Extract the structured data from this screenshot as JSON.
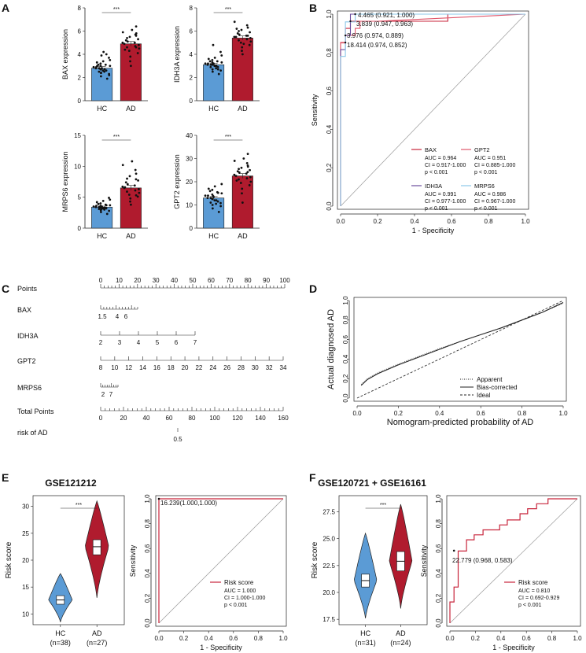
{
  "panels": {
    "A": "A",
    "B": "B",
    "C": "C",
    "D": "D",
    "E": "E",
    "F": "F"
  },
  "colors": {
    "hc": "#5B9BD5",
    "ad": "#B01B2E",
    "bax": "#C8243B",
    "idh3a": "#6A4C9C",
    "gpt2": "#E0566B",
    "mrps6": "#8BC7E8"
  },
  "chart_data": [
    {
      "type": "bar",
      "id": "A1",
      "categories": [
        "HC",
        "AD"
      ],
      "values": [
        2.8,
        4.9
      ],
      "errors": [
        0.15,
        0.2
      ],
      "ylabel": "BAX expression",
      "ylim": [
        0,
        8
      ],
      "yticks": [
        0,
        2,
        4,
        6,
        8
      ],
      "significance": "***",
      "points": [
        [
          1.9,
          2.1,
          2.3,
          2.4,
          2.5,
          2.5,
          2.6,
          2.6,
          2.7,
          2.7,
          2.8,
          2.8,
          2.8,
          2.9,
          2.9,
          3.0,
          3.0,
          3.1,
          3.1,
          3.2,
          3.3,
          3.4,
          3.5,
          3.7,
          3.9,
          4.0,
          4.2,
          2.2,
          2.4,
          3.0
        ],
        [
          3.0,
          3.4,
          3.8,
          4.1,
          4.3,
          4.5,
          4.6,
          4.7,
          4.8,
          4.9,
          5.0,
          5.0,
          5.1,
          5.2,
          5.3,
          5.4,
          5.5,
          5.6,
          5.7,
          5.9,
          6.1,
          6.4,
          4.4,
          4.6,
          5.8
        ]
      ]
    },
    {
      "type": "bar",
      "id": "A2",
      "categories": [
        "HC",
        "AD"
      ],
      "values": [
        3.1,
        5.4
      ],
      "errors": [
        0.12,
        0.18
      ],
      "ylabel": "IDH3A expression",
      "ylim": [
        0,
        8
      ],
      "yticks": [
        0,
        2,
        4,
        6,
        8
      ],
      "significance": "***",
      "points": [
        [
          2.3,
          2.5,
          2.6,
          2.7,
          2.8,
          2.9,
          2.9,
          3.0,
          3.0,
          3.1,
          3.1,
          3.1,
          3.2,
          3.2,
          3.2,
          3.3,
          3.3,
          3.4,
          3.4,
          3.5,
          3.6,
          3.7,
          3.9,
          4.2,
          4.8,
          2.7,
          3.0
        ],
        [
          4.0,
          4.3,
          4.6,
          4.8,
          5.0,
          5.1,
          5.2,
          5.3,
          5.4,
          5.5,
          5.5,
          5.6,
          5.7,
          5.8,
          5.9,
          6.0,
          6.1,
          6.3,
          6.5,
          6.8,
          4.9,
          5.6,
          6.2
        ]
      ]
    },
    {
      "type": "bar",
      "id": "A3",
      "categories": [
        "HC",
        "AD"
      ],
      "values": [
        3.4,
        6.5
      ],
      "errors": [
        0.15,
        0.4
      ],
      "ylabel": "MRPS6 expression",
      "ylim": [
        0,
        15
      ],
      "yticks": [
        0,
        5,
        10,
        15
      ],
      "significance": "***",
      "points": [
        [
          2.3,
          2.6,
          2.8,
          2.9,
          3.0,
          3.1,
          3.2,
          3.2,
          3.3,
          3.3,
          3.4,
          3.4,
          3.5,
          3.5,
          3.6,
          3.6,
          3.7,
          3.8,
          3.9,
          4.0,
          4.2,
          4.4,
          4.6,
          4.9,
          3.1,
          3.7
        ],
        [
          3.8,
          4.3,
          4.8,
          5.1,
          5.4,
          5.7,
          5.9,
          6.1,
          6.3,
          6.5,
          6.7,
          6.9,
          7.1,
          7.4,
          7.7,
          8.0,
          8.4,
          8.8,
          9.4,
          10.2,
          10.8,
          5.3,
          6.6,
          7.9
        ]
      ]
    },
    {
      "type": "bar",
      "id": "A4",
      "categories": [
        "HC",
        "AD"
      ],
      "values": [
        13,
        22.5
      ],
      "errors": [
        0.6,
        1.0
      ],
      "ylabel": "GPT2 expression",
      "ylim": [
        0,
        40
      ],
      "yticks": [
        0,
        10,
        20,
        30,
        40
      ],
      "significance": "***",
      "points": [
        [
          7,
          8.5,
          9.5,
          10,
          10.5,
          11,
          11.5,
          12,
          12,
          12.5,
          13,
          13,
          13.5,
          14,
          14,
          14.5,
          15,
          15.5,
          16,
          16.5,
          17,
          18,
          19,
          10.8,
          13.8,
          15.2
        ],
        [
          11,
          15,
          17,
          18.5,
          19.5,
          20,
          21,
          21.5,
          22,
          22.5,
          23,
          23.5,
          24,
          24.5,
          25,
          25.5,
          26,
          27,
          28,
          29,
          30,
          32,
          20.5,
          24.2,
          26.5
        ]
      ]
    },
    {
      "type": "line",
      "id": "B",
      "xlabel": "1 - Specificity",
      "ylabel": "Sensitivity",
      "xlim": [
        0,
        1
      ],
      "ylim": [
        0,
        1
      ],
      "ticks": [
        "0.0",
        "0.2",
        "0.4",
        "0.6",
        "0.8",
        "1.0"
      ],
      "annotations": [
        "4.465 (0.921, 1.000)",
        "3.839 (0.947, 0.963)",
        "3.976 (0.974, 0.889)",
        "18.414 (0.974, 0.852)"
      ],
      "series": [
        {
          "name": "BAX",
          "auc": "AUC = 0.964",
          "ci": "CI = 0.917-1.000",
          "p": "p < 0.001",
          "x": [
            0,
            0,
            0.026,
            0.026,
            0.053,
            0.053,
            0.079,
            0.079,
            0.58,
            0.58,
            0.9,
            1.0
          ],
          "y": [
            0,
            0.852,
            0.852,
            0.926,
            0.926,
            0.963,
            0.963,
            0.963,
            0.963,
            1.0,
            1.0,
            1.0
          ]
        },
        {
          "name": "GPT2",
          "auc": "AUC = 0.951",
          "ci": "CI = 0.885-1.000",
          "p": "p < 0.001",
          "x": [
            0,
            0,
            0.026,
            0.026,
            0.079,
            0.079,
            0.105,
            0.105,
            0.2,
            1.0
          ],
          "y": [
            0,
            0.85,
            0.85,
            0.89,
            0.89,
            0.926,
            0.926,
            0.963,
            0.963,
            1.0
          ]
        },
        {
          "name": "IDH3A",
          "auc": "AUC = 0.991",
          "ci": "CI = 0.977-1.000",
          "p": "p < 0.001",
          "x": [
            0,
            0,
            0.026,
            0.026,
            0.053,
            0.053,
            1.0
          ],
          "y": [
            0,
            0.815,
            0.815,
            0.889,
            0.889,
            1.0,
            1.0
          ]
        },
        {
          "name": "MRPS6",
          "auc": "AUC = 0.986",
          "ci": "CI = 0.967-1.000",
          "p": "p < 0.001",
          "x": [
            0,
            0,
            0.026,
            0.026,
            0.079,
            0.079,
            1.0
          ],
          "y": [
            0,
            0.78,
            0.78,
            0.96,
            0.96,
            1.0,
            1.0
          ]
        }
      ]
    },
    {
      "type": "table",
      "id": "C",
      "rows": [
        {
          "label": "Points",
          "ticks": [
            "0",
            "10",
            "20",
            "30",
            "40",
            "50",
            "60",
            "70",
            "80",
            "90",
            "100"
          ]
        },
        {
          "label": "BAX",
          "ticks": [
            "1.5",
            "4",
            "6"
          ]
        },
        {
          "label": "IDH3A",
          "ticks": [
            "2",
            "3",
            "4",
            "5",
            "6",
            "7"
          ]
        },
        {
          "label": "GPT2",
          "ticks": [
            "8",
            "10",
            "12",
            "14",
            "16",
            "18",
            "20",
            "22",
            "24",
            "26",
            "28",
            "30",
            "32",
            "34"
          ]
        },
        {
          "label": "MRPS6",
          "ticks": [
            "2",
            "7"
          ]
        },
        {
          "label": "Total Points",
          "ticks": [
            "0",
            "20",
            "40",
            "60",
            "80",
            "100",
            "120",
            "140",
            "160"
          ]
        },
        {
          "label": "risk of AD",
          "ticks": [
            "0.5"
          ]
        }
      ]
    },
    {
      "type": "line",
      "id": "D",
      "xlabel": "Nomogram-predicted probability of AD",
      "ylabel": "Actual diagnosed AD",
      "xlim": [
        0,
        1
      ],
      "ylim": [
        0,
        1
      ],
      "ticks": [
        "0.0",
        "0.2",
        "0.4",
        "0.6",
        "0.8",
        "1.0"
      ],
      "legend": [
        "Apparent",
        "Bias-corrected",
        "Ideal"
      ],
      "series": [
        {
          "name": "Apparent",
          "x": [
            0.02,
            0.05,
            0.1,
            0.2,
            0.3,
            0.4,
            0.5,
            0.6,
            0.7,
            0.8,
            0.9,
            1.0
          ],
          "y": [
            0.14,
            0.2,
            0.26,
            0.35,
            0.43,
            0.51,
            0.58,
            0.65,
            0.72,
            0.8,
            0.88,
            0.97
          ]
        },
        {
          "name": "Bias-corrected",
          "x": [
            0.02,
            0.05,
            0.1,
            0.2,
            0.3,
            0.4,
            0.5,
            0.6,
            0.7,
            0.8,
            0.9,
            1.0
          ],
          "y": [
            0.13,
            0.19,
            0.25,
            0.34,
            0.42,
            0.5,
            0.58,
            0.65,
            0.72,
            0.8,
            0.88,
            0.98
          ]
        },
        {
          "name": "Ideal",
          "x": [
            0,
            1
          ],
          "y": [
            0,
            1
          ]
        }
      ]
    },
    {
      "type": "violin",
      "id": "E1",
      "title": "GSE121212",
      "ylabel": "Risk score",
      "categories": [
        "HC\n(n=38)",
        "AD\n(n=27)"
      ],
      "cat_names": [
        "HC",
        "AD"
      ],
      "counts": [
        "(n=38)",
        "(n=27)"
      ],
      "ylim": [
        8,
        32
      ],
      "yticks": [
        10,
        15,
        20,
        25,
        30
      ],
      "significance": "***",
      "stats": [
        {
          "min": 8.5,
          "q1": 11.8,
          "median": 12.6,
          "q3": 13.4,
          "max": 17.5
        },
        {
          "min": 13,
          "q1": 21,
          "median": 22.5,
          "q3": 23.8,
          "max": 31
        }
      ]
    },
    {
      "type": "line",
      "id": "E2",
      "xlabel": "1 - Specificity",
      "ylabel": "Sensitivity",
      "xlim": [
        0,
        1
      ],
      "ylim": [
        0,
        1
      ],
      "ticks": [
        "0.0",
        "0.2",
        "0.4",
        "0.6",
        "0.8",
        "1.0"
      ],
      "annotation": "16.239(1.000,1.000)",
      "series": [
        {
          "name": "Risk score",
          "auc": "AUC = 1.000",
          "ci": "CI = 1.000-1.000",
          "p": "p < 0.001",
          "x": [
            0,
            0,
            1
          ],
          "y": [
            0,
            1,
            1
          ]
        }
      ]
    },
    {
      "type": "violin",
      "id": "F1",
      "title": "GSE120721 + GSE16161",
      "ylabel": "Risk score",
      "categories": [
        "HC\n(n=31)",
        "AD\n(n=24)"
      ],
      "cat_names": [
        "HC",
        "AD"
      ],
      "counts": [
        "(n=31)",
        "(n=24)"
      ],
      "ylim": [
        17,
        29
      ],
      "yticks": [
        17.5,
        20.0,
        22.5,
        25.0,
        27.5
      ],
      "yticklabels": [
        "17.5",
        "20.0",
        "22.5",
        "25.0",
        "27.5"
      ],
      "significance": "***",
      "stats": [
        {
          "min": 17.6,
          "q1": 20.5,
          "median": 21.1,
          "q3": 21.7,
          "max": 25.5
        },
        {
          "min": 18.5,
          "q1": 22.0,
          "median": 22.9,
          "q3": 23.8,
          "max": 28.2
        }
      ]
    },
    {
      "type": "line",
      "id": "F2",
      "xlabel": "1 - Specificity",
      "ylabel": "Sensitivity",
      "xlim": [
        0,
        1
      ],
      "ylim": [
        0,
        1
      ],
      "ticks": [
        "0.0",
        "0.2",
        "0.4",
        "0.6",
        "0.8",
        "1.0"
      ],
      "annotation": "22.779 (0.968, 0.583)",
      "series": [
        {
          "name": "Risk score",
          "auc": "AUC = 0.810",
          "ci": "CI = 0.692-0.929",
          "p": "p < 0.001",
          "x": [
            0,
            0,
            0.032,
            0.032,
            0.065,
            0.065,
            0.13,
            0.13,
            0.19,
            0.19,
            0.26,
            0.26,
            0.32,
            0.32,
            0.39,
            0.39,
            0.45,
            0.45,
            0.55,
            0.55,
            0.61,
            0.61,
            0.68,
            0.68,
            0.77,
            0.77,
            1.0
          ],
          "y": [
            0,
            0.17,
            0.17,
            0.29,
            0.29,
            0.58,
            0.58,
            0.67,
            0.67,
            0.71,
            0.71,
            0.75,
            0.75,
            0.75,
            0.75,
            0.79,
            0.79,
            0.83,
            0.83,
            0.88,
            0.88,
            0.92,
            0.92,
            0.96,
            0.96,
            1.0,
            1.0
          ]
        }
      ]
    }
  ]
}
